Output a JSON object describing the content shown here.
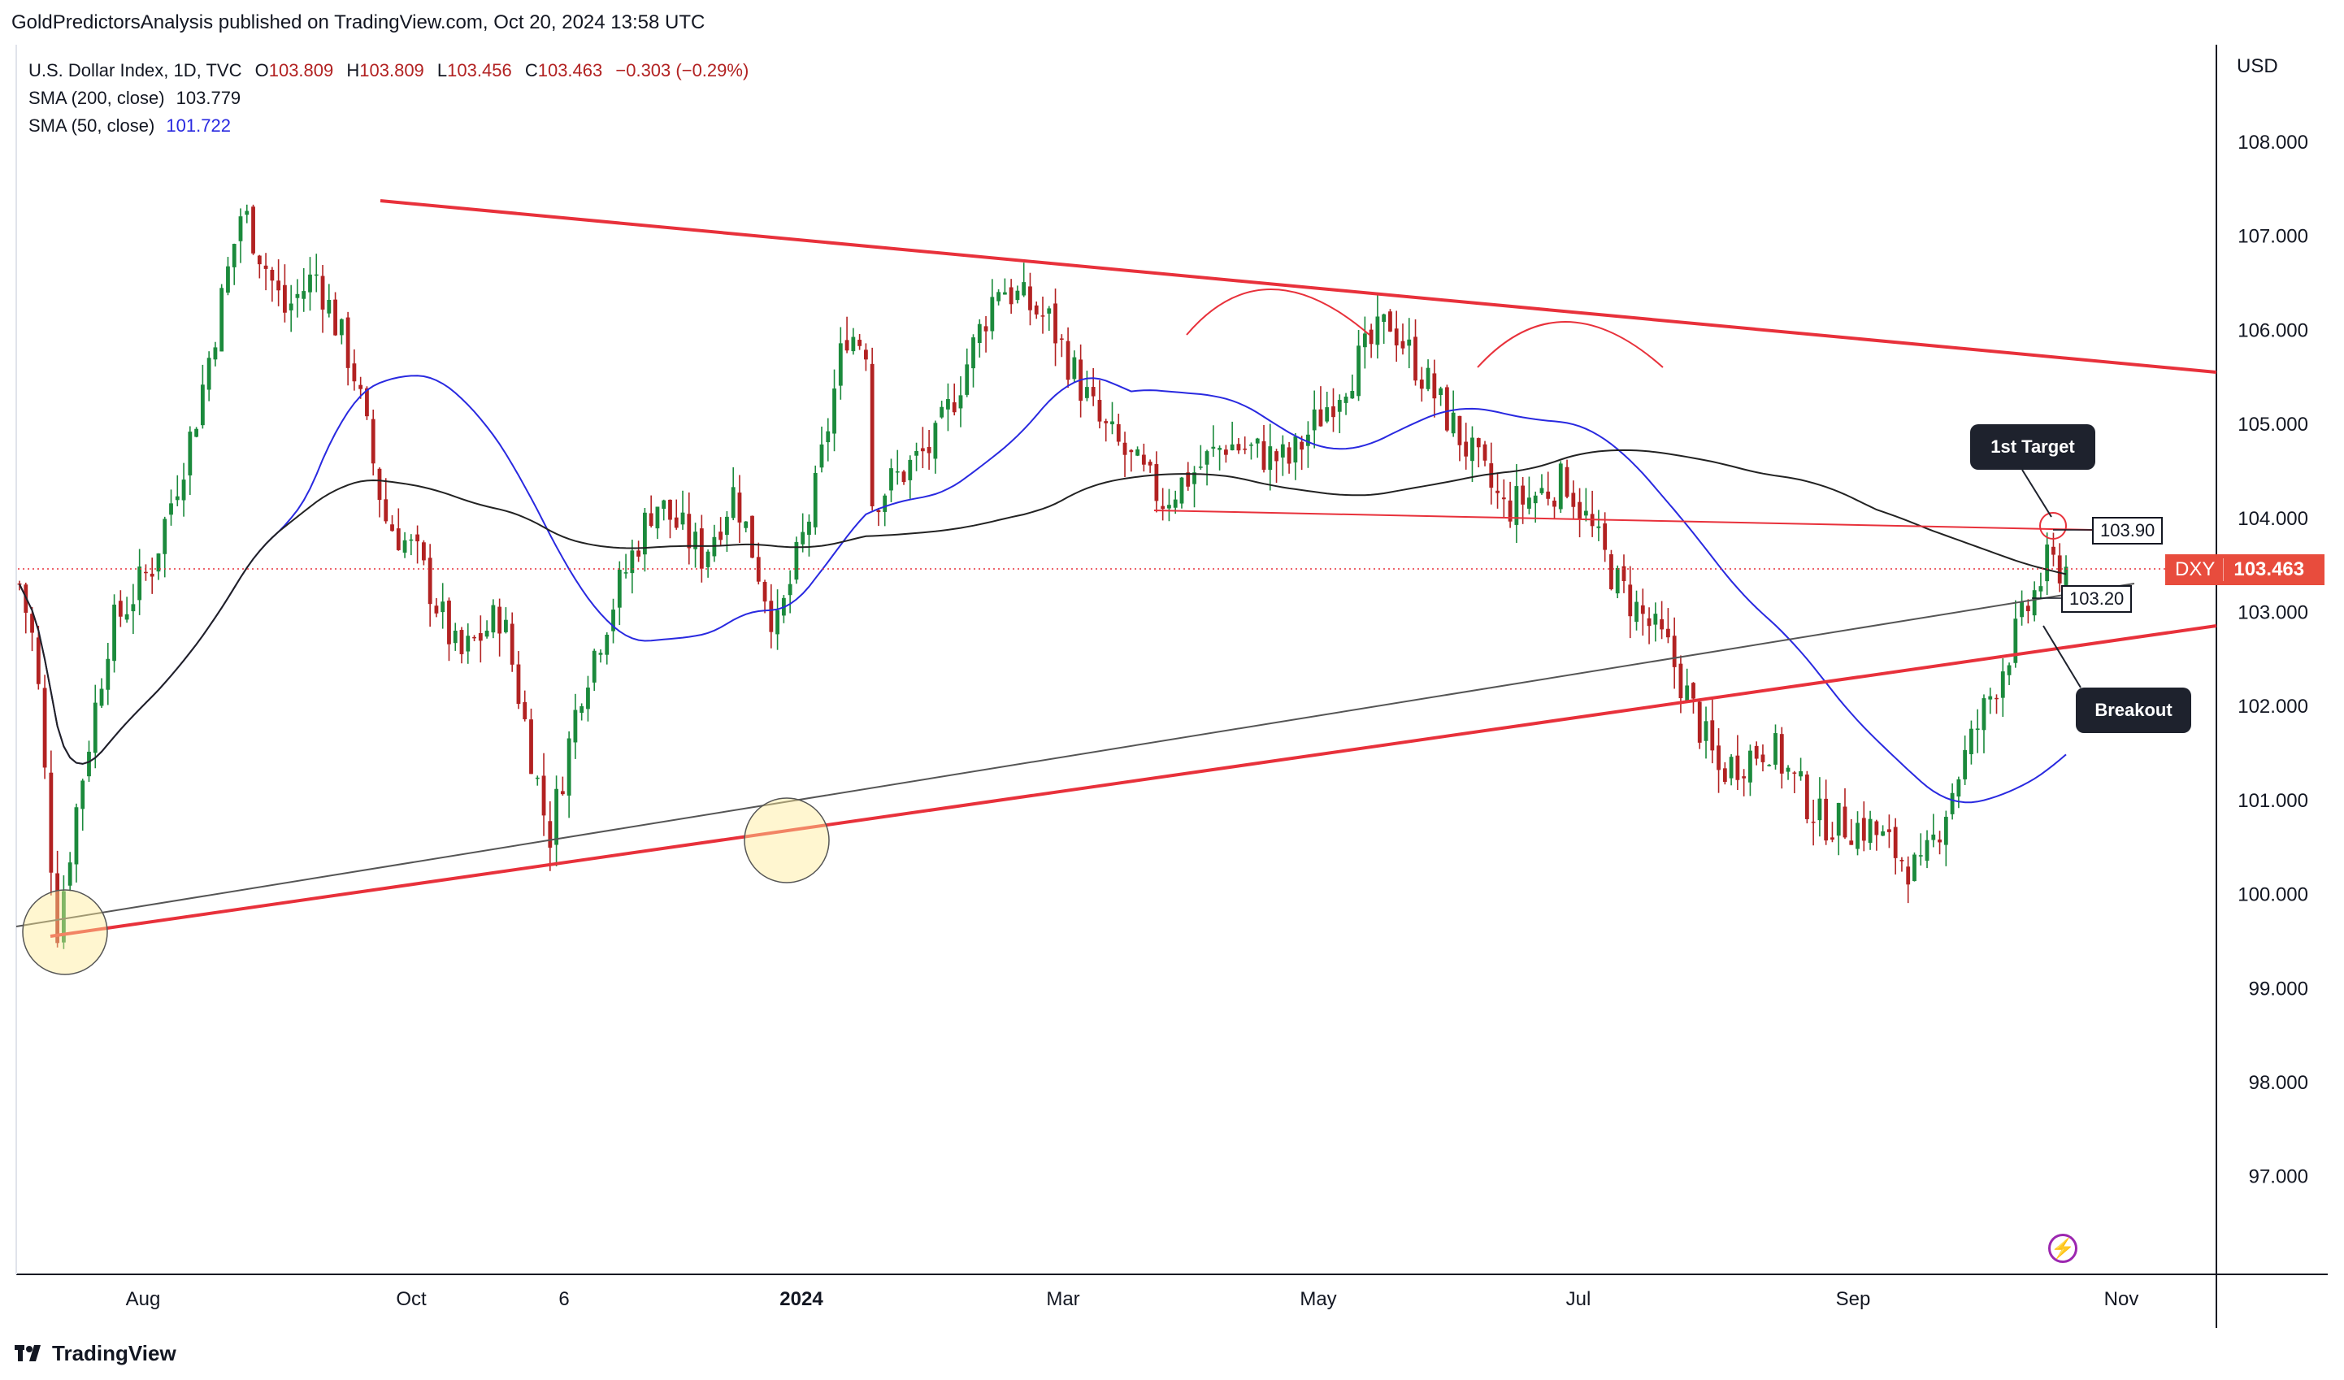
{
  "header": {
    "published": "GoldPredictorsAnalysis published on TradingView.com, Oct 20, 2024 13:58 UTC"
  },
  "legend": {
    "title": "U.S. Dollar Index, 1D, TVC",
    "o_label": "O",
    "o": "103.809",
    "h_label": "H",
    "h": "103.809",
    "l_label": "L",
    "l": "103.456",
    "c_label": "C",
    "c": "103.463",
    "change": "−0.303 (−0.29%)",
    "sma200_label": "SMA (200, close)",
    "sma200_value": "103.779",
    "sma50_label": "SMA (50, close)",
    "sma50_value": "101.722"
  },
  "price_scale": {
    "currency": "USD",
    "ticks": [
      "108.000",
      "107.000",
      "106.000",
      "105.000",
      "104.000",
      "103.000",
      "102.000",
      "101.000",
      "100.000",
      "99.000",
      "98.000",
      "97.000"
    ],
    "symbol": "DXY",
    "last_price": "103.463"
  },
  "annotations": {
    "first_target_label": "1st Target",
    "breakout_label": "Breakout",
    "level_upper": "103.90",
    "level_lower": "103.20"
  },
  "x_axis": {
    "labels": [
      "Aug",
      "Oct",
      "6",
      "2024",
      "Mar",
      "May",
      "Jul",
      "Sep",
      "Nov"
    ]
  },
  "footer": {
    "brand": "TradingView"
  },
  "colors": {
    "up": "#26a69a",
    "up_body": "#1b8a3c",
    "down": "#c0392b",
    "down_body": "#b22222",
    "sma50": "#2929e0",
    "sma200": "#222222",
    "trendline": "#e8313b",
    "accent": "#e84c3d",
    "bolt": "#9c27b0"
  },
  "chart_data": {
    "type": "candlestick",
    "title": "U.S. Dollar Index, 1D, TVC",
    "ylim": [
      96.0,
      108.6
    ],
    "grid": false,
    "key_points": {
      "start": 103.3,
      "low_jul_2023": 99.6,
      "high_oct_2023": 107.3,
      "low_dec_2023": 100.6,
      "high_apr_2024": 106.5,
      "high_jun_2024": 106.1,
      "low_sep_2024": 100.2,
      "last": 103.463
    },
    "series": [
      {
        "name": "SMA (200, close)",
        "last": 103.779
      },
      {
        "name": "SMA (50, close)",
        "last": 101.722
      }
    ]
  }
}
